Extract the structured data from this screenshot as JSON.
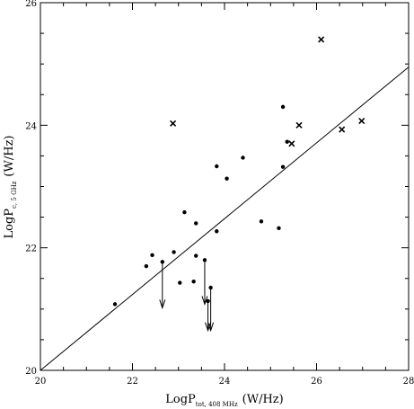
{
  "chart_data": {
    "type": "scatter",
    "xlabel": "LogP",
    "xlabel_subscript": "tot, 408 MHz",
    "xlabel_unit": "(W/Hz)",
    "ylabel": "LogP",
    "ylabel_subscript": "c, 5 GHz",
    "ylabel_unit": "(W/Hz)",
    "xlim": [
      20,
      28
    ],
    "ylim": [
      20,
      26
    ],
    "xticks_major": [
      20,
      22,
      24,
      26,
      28
    ],
    "yticks_major": [
      20,
      22,
      24,
      26
    ],
    "grid": false,
    "line": {
      "x": [
        20,
        28
      ],
      "y": [
        20,
        24.95
      ]
    },
    "series": [
      {
        "marker": "dot",
        "points": [
          {
            "x": 21.62,
            "y": 21.08
          },
          {
            "x": 22.3,
            "y": 21.7
          },
          {
            "x": 22.43,
            "y": 21.88
          },
          {
            "x": 22.9,
            "y": 21.93
          },
          {
            "x": 23.03,
            "y": 21.43
          },
          {
            "x": 23.13,
            "y": 22.58
          },
          {
            "x": 23.33,
            "y": 21.45
          },
          {
            "x": 23.38,
            "y": 21.87
          },
          {
            "x": 23.38,
            "y": 22.4
          },
          {
            "x": 23.83,
            "y": 22.27
          },
          {
            "x": 23.83,
            "y": 23.33
          },
          {
            "x": 24.05,
            "y": 23.13
          },
          {
            "x": 24.4,
            "y": 23.47
          },
          {
            "x": 24.8,
            "y": 22.43
          },
          {
            "x": 25.18,
            "y": 22.32
          },
          {
            "x": 25.27,
            "y": 23.32
          },
          {
            "x": 25.27,
            "y": 24.3
          },
          {
            "x": 25.36,
            "y": 23.73
          }
        ]
      },
      {
        "marker": "upper-limit",
        "points": [
          {
            "x": 22.65,
            "y": 21.77,
            "to": 21.02
          },
          {
            "x": 23.57,
            "y": 21.8,
            "to": 21.08
          },
          {
            "x": 23.64,
            "y": 21.13,
            "to": 20.65
          },
          {
            "x": 23.7,
            "y": 21.35,
            "to": 20.65
          }
        ]
      },
      {
        "marker": "cross",
        "points": [
          {
            "x": 22.88,
            "y": 24.03
          },
          {
            "x": 25.46,
            "y": 23.7
          },
          {
            "x": 25.62,
            "y": 24.0
          },
          {
            "x": 26.1,
            "y": 25.4
          },
          {
            "x": 26.55,
            "y": 23.93
          },
          {
            "x": 26.98,
            "y": 24.07
          }
        ]
      }
    ]
  }
}
